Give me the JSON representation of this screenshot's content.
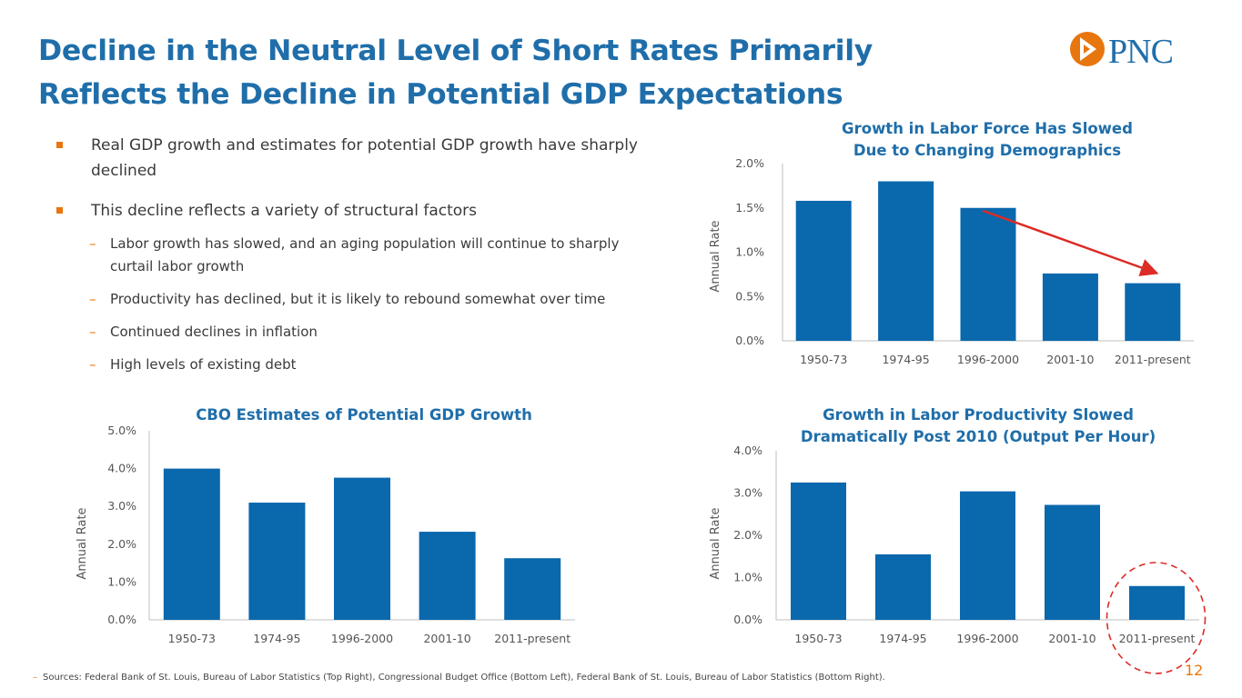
{
  "slide": {
    "title_line1": "Decline in the Neutral Level of Short Rates Primarily",
    "title_line2": "Reflects the Decline in Potential GDP Expectations",
    "logo_text": "PNC",
    "page_number": "12",
    "footer": "Sources: Federal Bank of St. Louis, Bureau of Labor Statistics (Top Right), Congressional Budget Office (Bottom Left), Federal Bank of St. Louis, Bureau of Labor Statistics (Bottom Right).",
    "colors": {
      "brand_blue": "#1f6eaa",
      "bar_blue": "#0a68ad",
      "accent_orange": "#e8760e",
      "arrow_red": "#dd2b26"
    }
  },
  "bullets": {
    "item1": "Real GDP growth and estimates for potential GDP growth have sharply declined",
    "item2": "This decline reflects a variety of structural factors",
    "sub": [
      "Labor growth has slowed, and an aging population will continue to sharply curtail labor growth",
      "Productivity has declined, but it is likely to rebound somewhat over time",
      "Continued declines in inflation",
      "High levels of existing debt"
    ]
  },
  "chart_data": [
    {
      "id": "labor-force",
      "type": "bar",
      "title_line1": "Growth in Labor Force Has Slowed",
      "title_line2": "Due to Changing Demographics",
      "ylabel": "Annual Rate",
      "categories": [
        "1950-73",
        "1974-95",
        "1996-2000",
        "2001-10",
        "2011-present"
      ],
      "values": [
        1.58,
        1.8,
        1.5,
        0.76,
        0.65
      ],
      "ylim": [
        0,
        2
      ],
      "yticks": [
        "0.0%",
        "0.5%",
        "1.0%",
        "1.5%",
        "2.0%"
      ],
      "annotation": "red arrow indicating decline from 1996-2000 to 2011-present"
    },
    {
      "id": "cbo-potential",
      "type": "bar",
      "title_line1": "CBO Estimates of Potential GDP Growth",
      "title_line2": "",
      "ylabel": "Annual Rate",
      "categories": [
        "1950-73",
        "1974-95",
        "1996-2000",
        "2001-10",
        "2011-present"
      ],
      "values": [
        4.0,
        3.1,
        3.76,
        2.33,
        1.63
      ],
      "ylim": [
        0,
        5
      ],
      "yticks": [
        "0.0%",
        "1.0%",
        "2.0%",
        "3.0%",
        "4.0%",
        "5.0%"
      ]
    },
    {
      "id": "productivity",
      "type": "bar",
      "title_line1": "Growth in Labor Productivity Slowed",
      "title_line2": "Dramatically Post 2010 (Output Per Hour)",
      "ylabel": "Annual Rate",
      "categories": [
        "1950-73",
        "1974-95",
        "1996-2000",
        "2001-10",
        "2011-present"
      ],
      "values": [
        3.25,
        1.55,
        3.04,
        2.72,
        0.8
      ],
      "ylim": [
        0,
        4
      ],
      "yticks": [
        "0.0%",
        "1.0%",
        "2.0%",
        "3.0%",
        "4.0%"
      ],
      "annotation": "dashed red circle around 2011-present"
    }
  ]
}
